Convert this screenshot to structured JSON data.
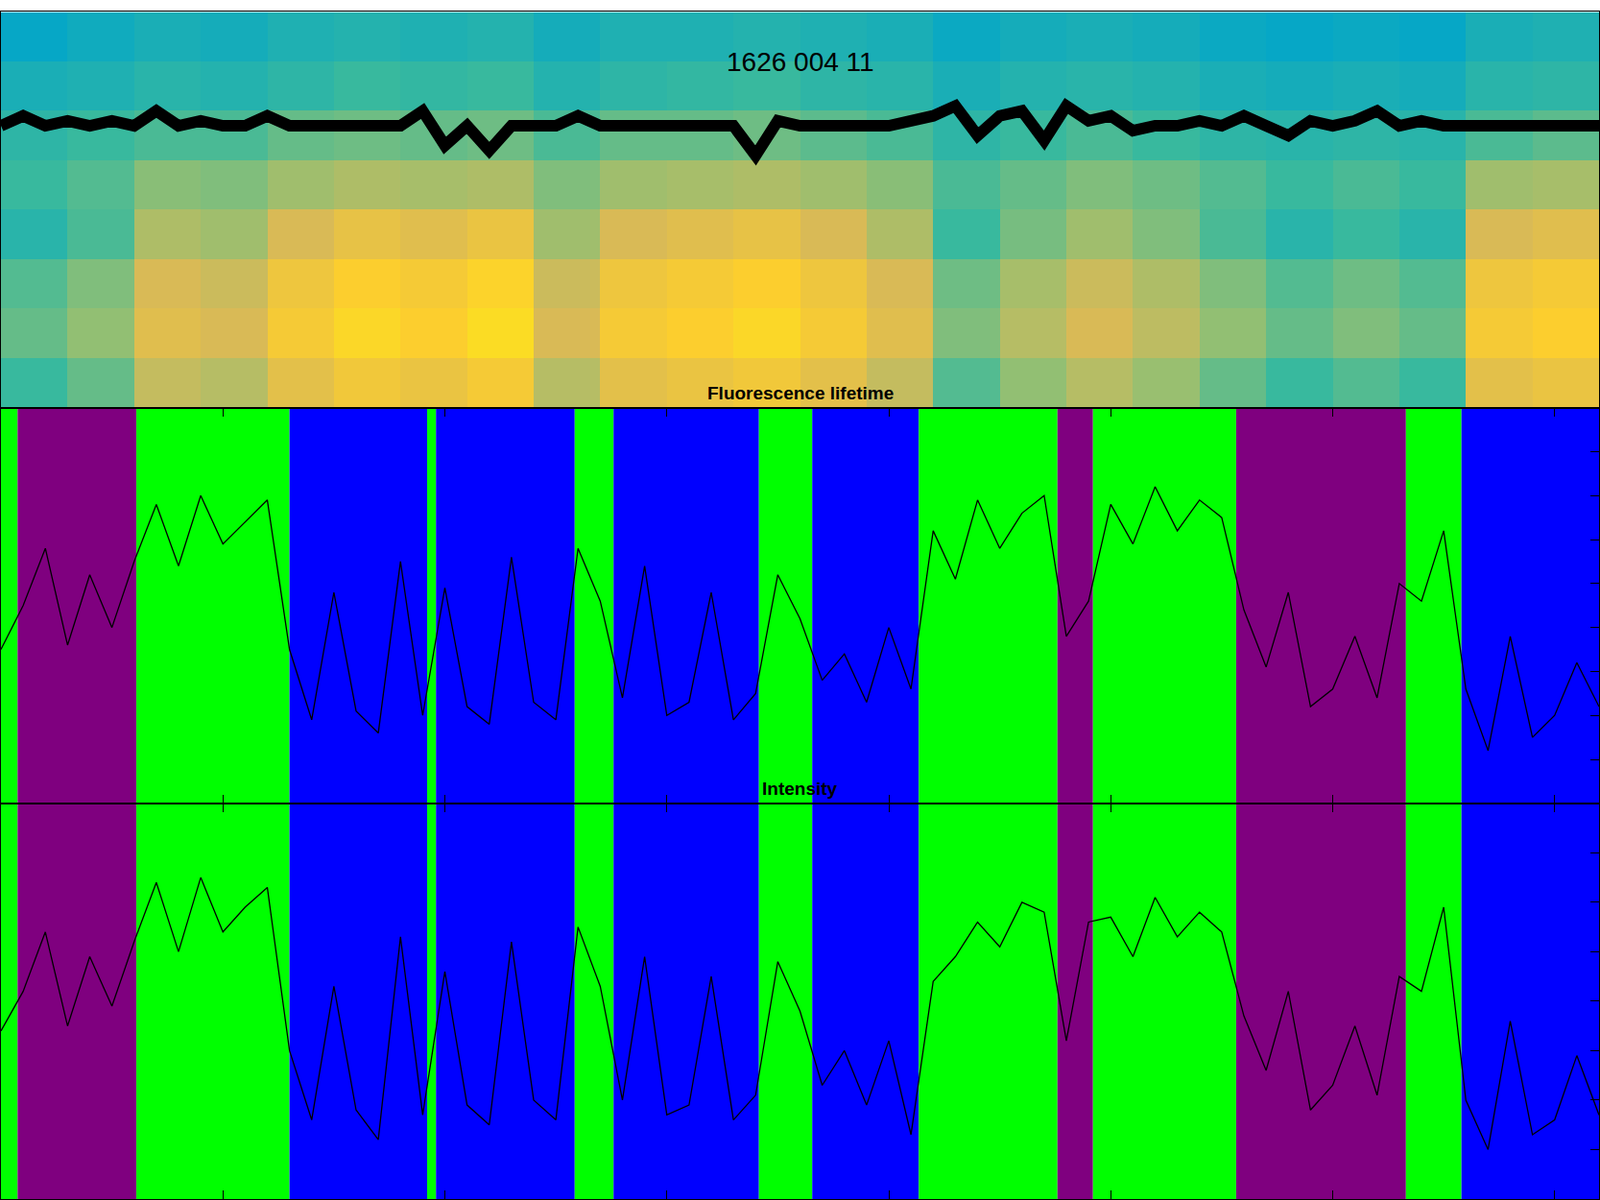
{
  "chart_data": [
    {
      "type": "heatmap",
      "title": "1626 004 11",
      "tick_labels": false,
      "grid": false,
      "xlim": [
        0,
        7200
      ],
      "ylim": [
        0,
        8
      ],
      "cell_x": [
        150,
        450,
        750,
        1050,
        1350,
        1650,
        1950,
        2250,
        2550,
        2850,
        3150,
        3450,
        3750,
        4050,
        4350,
        4650,
        4950,
        5250,
        5550,
        5850,
        6150,
        6450,
        6750,
        7050
      ],
      "cell_y": [
        0.5,
        1.5,
        2.5,
        3.5,
        4.5,
        5.5,
        6.5,
        7.5
      ],
      "zlim": [
        0.1,
        0.9
      ],
      "cells": [
        [
          0.5,
          0.55,
          0.67,
          0.65,
          0.73,
          0.77,
          0.75,
          0.78,
          0.65,
          0.73,
          0.75,
          0.77,
          0.73,
          0.67,
          0.53,
          0.6,
          0.65,
          0.61,
          0.55,
          0.5,
          0.53,
          0.5,
          0.73,
          0.75
        ],
        [
          0.55,
          0.6,
          0.72,
          0.7,
          0.78,
          0.82,
          0.8,
          0.83,
          0.7,
          0.78,
          0.8,
          0.82,
          0.78,
          0.72,
          0.58,
          0.65,
          0.7,
          0.66,
          0.6,
          0.55,
          0.58,
          0.55,
          0.78,
          0.8
        ],
        [
          0.53,
          0.58,
          0.7,
          0.68,
          0.76,
          0.8,
          0.78,
          0.81,
          0.68,
          0.76,
          0.78,
          0.8,
          0.76,
          0.7,
          0.56,
          0.63,
          0.68,
          0.64,
          0.58,
          0.53,
          0.56,
          0.53,
          0.76,
          0.78
        ],
        [
          0.47,
          0.52,
          0.64,
          0.62,
          0.7,
          0.74,
          0.72,
          0.75,
          0.62,
          0.7,
          0.72,
          0.74,
          0.7,
          0.64,
          0.5,
          0.57,
          0.62,
          0.58,
          0.52,
          0.47,
          0.5,
          0.47,
          0.7,
          0.72
        ],
        [
          0.5,
          0.53,
          0.59,
          0.58,
          0.62,
          0.64,
          0.63,
          0.64,
          0.58,
          0.62,
          0.63,
          0.64,
          0.62,
          0.59,
          0.52,
          0.55,
          0.58,
          0.56,
          0.53,
          0.5,
          0.52,
          0.5,
          0.62,
          0.63
        ],
        [
          0.48,
          0.5,
          0.52,
          0.52,
          0.55,
          0.56,
          0.55,
          0.56,
          0.52,
          0.55,
          0.55,
          0.56,
          0.54,
          0.52,
          0.48,
          0.5,
          0.52,
          0.5,
          0.48,
          0.47,
          0.48,
          0.47,
          0.52,
          0.54
        ],
        [
          0.44,
          0.45,
          0.47,
          0.46,
          0.48,
          0.5,
          0.49,
          0.5,
          0.46,
          0.48,
          0.49,
          0.5,
          0.48,
          0.47,
          0.44,
          0.46,
          0.47,
          0.46,
          0.44,
          0.43,
          0.44,
          0.43,
          0.47,
          0.48
        ],
        [
          0.4,
          0.42,
          0.44,
          0.43,
          0.45,
          0.46,
          0.45,
          0.46,
          0.43,
          0.45,
          0.45,
          0.46,
          0.45,
          0.44,
          0.41,
          0.43,
          0.44,
          0.43,
          0.41,
          0.4,
          0.41,
          0.4,
          0.44,
          0.45
        ]
      ],
      "x": [
        0,
        100,
        200,
        300,
        400,
        500,
        600,
        700,
        800,
        900,
        1000,
        1100,
        1200,
        1300,
        1400,
        1500,
        1600,
        1700,
        1800,
        1900,
        2000,
        2100,
        2200,
        2300,
        2400,
        2500,
        2600,
        2700,
        2800,
        2900,
        3000,
        3100,
        3200,
        3300,
        3400,
        3500,
        3600,
        3700,
        3800,
        3900,
        4000,
        4100,
        4200,
        4300,
        4400,
        4500,
        4600,
        4700,
        4800,
        4900,
        5000,
        5100,
        5200,
        5300,
        5400,
        5500,
        5600,
        5700,
        5800,
        5900,
        6000,
        6100,
        6200,
        6300,
        6400,
        6500,
        6600,
        6700,
        6800,
        6900,
        7000,
        7100,
        7200
      ],
      "series": [
        {
          "type": "line",
          "color": "#000000",
          "values": [
            5.7,
            5.9,
            5.7,
            5.8,
            5.7,
            5.8,
            5.7,
            6.0,
            5.7,
            5.8,
            5.7,
            5.7,
            5.9,
            5.7,
            5.7,
            5.7,
            5.7,
            5.7,
            5.7,
            6.0,
            5.3,
            5.7,
            5.2,
            5.7,
            5.7,
            5.7,
            5.9,
            5.7,
            5.7,
            5.7,
            5.7,
            5.7,
            5.7,
            5.7,
            5.1,
            5.8,
            5.7,
            5.7,
            5.7,
            5.7,
            5.7,
            5.8,
            5.9,
            6.1,
            5.5,
            5.9,
            6.0,
            5.4,
            6.1,
            5.8,
            5.9,
            5.6,
            5.7,
            5.7,
            5.8,
            5.7,
            5.9,
            5.7,
            5.5,
            5.8,
            5.7,
            5.8,
            6.0,
            5.7,
            5.8,
            5.7,
            5.7,
            5.7,
            5.7,
            5.7,
            5.7,
            5.7,
            5.7
          ]
        }
      ]
    },
    {
      "type": "line",
      "title": "Fluorescence lifetime",
      "tick_labels": false,
      "grid": false,
      "xlim": [
        0,
        7200
      ],
      "xticks": [
        1000,
        2000,
        3000,
        4000,
        5000,
        6000,
        7000
      ],
      "ylim": [
        0,
        9
      ],
      "yticks": [
        1,
        2,
        3,
        4,
        5,
        6,
        7,
        8
      ],
      "bands": [
        {
          "start": 0,
          "end": 75,
          "color": "#00ff00"
        },
        {
          "start": 75,
          "end": 610,
          "color": "#7f007f"
        },
        {
          "start": 610,
          "end": 1300,
          "color": "#00ff00"
        },
        {
          "start": 1300,
          "end": 1920,
          "color": "#0000ff"
        },
        {
          "start": 1920,
          "end": 1960,
          "color": "#00ff00"
        },
        {
          "start": 1960,
          "end": 2585,
          "color": "#0000ff"
        },
        {
          "start": 2585,
          "end": 2760,
          "color": "#00ff00"
        },
        {
          "start": 2760,
          "end": 3415,
          "color": "#0000ff"
        },
        {
          "start": 3415,
          "end": 3655,
          "color": "#00ff00"
        },
        {
          "start": 3655,
          "end": 4135,
          "color": "#0000ff"
        },
        {
          "start": 4135,
          "end": 4760,
          "color": "#00ff00"
        },
        {
          "start": 4760,
          "end": 4920,
          "color": "#7f007f"
        },
        {
          "start": 4920,
          "end": 5565,
          "color": "#00ff00"
        },
        {
          "start": 5565,
          "end": 6330,
          "color": "#7f007f"
        },
        {
          "start": 6330,
          "end": 6580,
          "color": "#00ff00"
        },
        {
          "start": 6580,
          "end": 7200,
          "color": "#0000ff"
        }
      ],
      "x": [
        0,
        100,
        200,
        300,
        400,
        500,
        600,
        700,
        800,
        900,
        1000,
        1100,
        1200,
        1300,
        1400,
        1500,
        1600,
        1700,
        1800,
        1900,
        2000,
        2100,
        2200,
        2300,
        2400,
        2500,
        2600,
        2700,
        2800,
        2900,
        3000,
        3100,
        3200,
        3300,
        3400,
        3500,
        3600,
        3700,
        3800,
        3900,
        4000,
        4100,
        4200,
        4300,
        4400,
        4500,
        4600,
        4700,
        4800,
        4900,
        5000,
        5100,
        5200,
        5300,
        5400,
        5500,
        5600,
        5700,
        5800,
        5900,
        6000,
        6100,
        6200,
        6300,
        6400,
        6500,
        6600,
        6700,
        6800,
        6900,
        7000,
        7100,
        7200
      ],
      "series": [
        {
          "color": "#000000",
          "values": [
            3.5,
            4.5,
            5.8,
            3.6,
            5.2,
            4.0,
            5.5,
            6.8,
            5.4,
            7.0,
            5.9,
            6.4,
            6.9,
            3.5,
            1.9,
            4.8,
            2.1,
            1.6,
            5.5,
            2.0,
            4.9,
            2.2,
            1.8,
            5.6,
            2.3,
            1.9,
            5.8,
            4.6,
            2.4,
            5.4,
            2.0,
            2.3,
            4.8,
            1.9,
            2.5,
            5.2,
            4.2,
            2.8,
            3.4,
            2.3,
            4.0,
            2.6,
            6.2,
            5.1,
            6.9,
            5.8,
            6.6,
            7.0,
            3.8,
            4.6,
            6.8,
            5.9,
            7.2,
            6.2,
            6.9,
            6.5,
            4.4,
            3.1,
            4.8,
            2.2,
            2.6,
            3.8,
            2.4,
            5.0,
            4.6,
            6.2,
            2.6,
            1.2,
            3.8,
            1.5,
            2.0,
            3.2,
            2.2
          ]
        }
      ]
    },
    {
      "type": "line",
      "title": "Intensity",
      "tick_labels": false,
      "grid": false,
      "xlim": [
        0,
        7200
      ],
      "xticks": [
        1000,
        2000,
        3000,
        4000,
        5000,
        6000,
        7000
      ],
      "ylim": [
        0,
        8
      ],
      "yticks": [
        1,
        2,
        3,
        4,
        5,
        6,
        7
      ],
      "bands": [
        {
          "start": 0,
          "end": 75,
          "color": "#00ff00"
        },
        {
          "start": 75,
          "end": 610,
          "color": "#7f007f"
        },
        {
          "start": 610,
          "end": 1300,
          "color": "#00ff00"
        },
        {
          "start": 1300,
          "end": 1920,
          "color": "#0000ff"
        },
        {
          "start": 1920,
          "end": 1960,
          "color": "#00ff00"
        },
        {
          "start": 1960,
          "end": 2585,
          "color": "#0000ff"
        },
        {
          "start": 2585,
          "end": 2760,
          "color": "#00ff00"
        },
        {
          "start": 2760,
          "end": 3415,
          "color": "#0000ff"
        },
        {
          "start": 3415,
          "end": 3655,
          "color": "#00ff00"
        },
        {
          "start": 3655,
          "end": 4135,
          "color": "#0000ff"
        },
        {
          "start": 4135,
          "end": 4760,
          "color": "#00ff00"
        },
        {
          "start": 4760,
          "end": 4920,
          "color": "#7f007f"
        },
        {
          "start": 4920,
          "end": 5565,
          "color": "#00ff00"
        },
        {
          "start": 5565,
          "end": 6330,
          "color": "#7f007f"
        },
        {
          "start": 6330,
          "end": 6580,
          "color": "#00ff00"
        },
        {
          "start": 6580,
          "end": 7200,
          "color": "#0000ff"
        }
      ],
      "x": [
        0,
        100,
        200,
        300,
        400,
        500,
        600,
        700,
        800,
        900,
        1000,
        1100,
        1200,
        1300,
        1400,
        1500,
        1600,
        1700,
        1800,
        1900,
        2000,
        2100,
        2200,
        2300,
        2400,
        2500,
        2600,
        2700,
        2800,
        2900,
        3000,
        3100,
        3200,
        3300,
        3400,
        3500,
        3600,
        3700,
        3800,
        3900,
        4000,
        4100,
        4200,
        4300,
        4400,
        4500,
        4600,
        4700,
        4800,
        4900,
        5000,
        5100,
        5200,
        5300,
        5400,
        5500,
        5600,
        5700,
        5800,
        5900,
        6000,
        6100,
        6200,
        6300,
        6400,
        6500,
        6600,
        6700,
        6800,
        6900,
        7000,
        7100,
        7200
      ],
      "series": [
        {
          "color": "#000000",
          "values": [
            3.4,
            4.2,
            5.4,
            3.5,
            4.9,
            3.9,
            5.2,
            6.4,
            5.0,
            6.5,
            5.4,
            5.9,
            6.3,
            3.0,
            1.6,
            4.3,
            1.8,
            1.2,
            5.3,
            1.7,
            4.6,
            1.9,
            1.5,
            5.2,
            2.0,
            1.6,
            5.5,
            4.3,
            2.0,
            4.9,
            1.7,
            1.9,
            4.5,
            1.6,
            2.1,
            4.8,
            3.8,
            2.3,
            3.0,
            1.9,
            3.2,
            1.3,
            4.4,
            4.9,
            5.6,
            5.1,
            6.0,
            5.8,
            3.2,
            5.6,
            5.7,
            4.9,
            6.1,
            5.3,
            5.8,
            5.4,
            3.7,
            2.6,
            4.2,
            1.8,
            2.3,
            3.5,
            2.1,
            4.5,
            4.2,
            5.9,
            2.0,
            1.0,
            3.6,
            1.3,
            1.6,
            2.9,
            1.7
          ]
        }
      ]
    }
  ]
}
